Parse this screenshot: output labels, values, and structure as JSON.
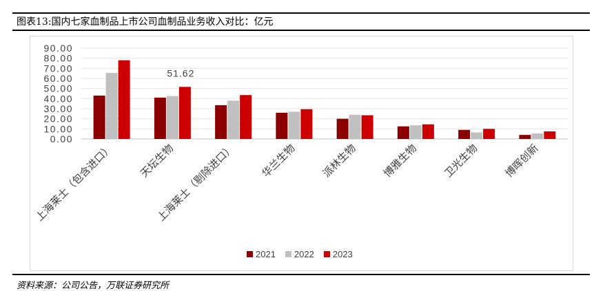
{
  "figure": {
    "title": "图表13:国内七家血制品上市公司血制品业务收入对比：亿元",
    "source": "资料来源：公司公告，万联证券研究所"
  },
  "chart_data": {
    "type": "bar",
    "categories": [
      "上海莱士（包含进口）",
      "天坛生物",
      "上海莱士（剔除进口）",
      "华兰生物",
      "派林生物",
      "博雅生物",
      "卫光生物",
      "博晖创新"
    ],
    "series": [
      {
        "name": "2021",
        "color": "#8b0000",
        "values": [
          43.0,
          41.0,
          33.5,
          26.0,
          20.0,
          12.5,
          9.0,
          4.0
        ]
      },
      {
        "name": "2022",
        "color": "#c0c0c0",
        "values": [
          65.5,
          42.5,
          38.0,
          27.0,
          24.0,
          13.5,
          6.5,
          5.5
        ]
      },
      {
        "name": "2023",
        "color": "#cc0000",
        "values": [
          78.0,
          51.62,
          43.5,
          29.5,
          23.5,
          14.5,
          10.0,
          7.5
        ]
      }
    ],
    "annotation": {
      "label": "51.62",
      "category_index": 1,
      "series_index": 2
    },
    "yticks": [
      "0.00",
      "10.00",
      "20.00",
      "30.00",
      "40.00",
      "50.00",
      "60.00",
      "70.00",
      "80.00",
      "90.00"
    ],
    "ylim": [
      0,
      90
    ],
    "grid": true,
    "legend": "bottom-center",
    "xlabel": "",
    "ylabel": ""
  }
}
